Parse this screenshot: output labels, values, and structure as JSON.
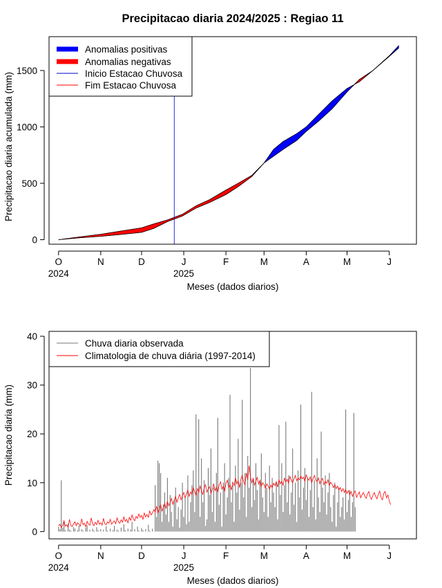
{
  "title": "Precipitacao diaria 2024/2025 : Regiao 11",
  "colors": {
    "positive": "#0000ff",
    "negative": "#ff0000",
    "start_line": "#0000cd",
    "end_line": "#ff0000",
    "observed": "#777777",
    "climatology": "#ff0000"
  },
  "chart_data": [
    {
      "type": "area",
      "ylabel": "Precipitacao diaria acumulada (mm)",
      "xlabel": "Meses (dados diarios)",
      "x_month_ticks": [
        "O",
        "N",
        "D",
        "J",
        "F",
        "M",
        "A",
        "M",
        "J"
      ],
      "x_year_labels": [
        "2024",
        "2025"
      ],
      "x_range": [
        "2024-09-24",
        "2025-06-21"
      ],
      "ylim": [
        -40,
        1800
      ],
      "y_ticks": [
        0,
        500,
        1000,
        1500
      ],
      "legend": {
        "position": "top-left",
        "entries": [
          "Anomalias positivas",
          "Anomalias negativas",
          "Inicio Estacao Chuvosa",
          "Fim Estacao Chuvosa"
        ]
      },
      "rainy_season_start": "2024-12-25",
      "observed_accumulated": {
        "dates": [
          "2024-10-01",
          "2024-10-15",
          "2024-11-01",
          "2024-11-15",
          "2024-12-01",
          "2024-12-10",
          "2024-12-20",
          "2024-12-31",
          "2025-01-10",
          "2025-01-20",
          "2025-02-01",
          "2025-02-10",
          "2025-02-20",
          "2025-03-01",
          "2025-03-08",
          "2025-03-15",
          "2025-03-25",
          "2025-04-01",
          "2025-04-10",
          "2025-04-20",
          "2025-05-01",
          "2025-05-10",
          "2025-05-20",
          "2025-06-01",
          "2025-06-08"
        ],
        "values": [
          0,
          15,
          30,
          45,
          65,
          100,
          160,
          210,
          280,
          330,
          400,
          470,
          560,
          680,
          800,
          870,
          940,
          1000,
          1110,
          1230,
          1340,
          1400,
          1500,
          1630,
          1720
        ]
      },
      "climatology_accumulated": {
        "dates": [
          "2024-10-01",
          "2024-10-15",
          "2024-11-01",
          "2024-11-15",
          "2024-12-01",
          "2024-12-10",
          "2024-12-20",
          "2024-12-31",
          "2025-01-10",
          "2025-01-20",
          "2025-02-01",
          "2025-02-10",
          "2025-02-20",
          "2025-03-01",
          "2025-03-08",
          "2025-03-15",
          "2025-03-25",
          "2025-04-01",
          "2025-04-10",
          "2025-04-20",
          "2025-05-01",
          "2025-05-10",
          "2025-05-20",
          "2025-06-01",
          "2025-06-08"
        ],
        "values": [
          0,
          22,
          48,
          75,
          105,
          140,
          175,
          225,
          300,
          355,
          440,
          500,
          570,
          680,
          740,
          800,
          880,
          960,
          1050,
          1160,
          1310,
          1420,
          1500,
          1625,
          1700
        ]
      }
    },
    {
      "type": "bar",
      "ylabel": "Precipitacao diaria (mm)",
      "xlabel": "Meses (dados diarios)",
      "x_month_ticks": [
        "O",
        "N",
        "D",
        "J",
        "F",
        "M",
        "A",
        "M",
        "J"
      ],
      "x_year_labels": [
        "2024",
        "2025"
      ],
      "x_range": [
        "2024-09-24",
        "2025-06-21"
      ],
      "ylim": [
        -1.5,
        41
      ],
      "y_ticks": [
        0,
        10,
        20,
        30,
        40
      ],
      "legend": {
        "position": "top-left",
        "entries": [
          "Chuva diaria observada",
          "Climatologia de chuva diária (1997-2014)"
        ]
      },
      "observed_daily": {
        "start": "2024-10-01",
        "values": [
          1.0,
          0.5,
          10.5,
          0.8,
          2.2,
          0.3,
          0.0,
          1.6,
          0.4,
          0.2,
          0.0,
          0.9,
          0.6,
          0.0,
          0.3,
          1.2,
          0.0,
          0.5,
          0.2,
          0.0,
          0.8,
          1.3,
          0.0,
          0.4,
          0.0,
          0.6,
          0.2,
          0.0,
          0.9,
          0.3,
          0.0,
          0.5,
          0.0,
          0.4,
          0.0,
          1.1,
          0.2,
          0.0,
          0.6,
          0.0,
          0.3,
          1.2,
          0.0,
          0.4,
          0.2,
          0.0,
          0.8,
          0.0,
          1.5,
          0.3,
          0.0,
          0.6,
          0.0,
          0.4,
          2.0,
          0.0,
          0.5,
          0.0,
          1.0,
          0.2,
          0.0,
          0.7,
          0.3,
          0.0,
          0.5,
          0.0,
          1.4,
          0.2,
          0.0,
          0.6,
          0.0,
          9.5,
          3.0,
          14.5,
          14.0,
          12.0,
          2.0,
          5.5,
          8.0,
          3.5,
          11.0,
          2.0,
          7.5,
          4.0,
          1.0,
          6.5,
          9.0,
          2.5,
          5.0,
          0.8,
          4.5,
          10.0,
          3.0,
          7.0,
          1.5,
          11.5,
          2.0,
          6.0,
          9.5,
          12.5,
          4.0,
          24.0,
          8.0,
          23.0,
          3.0,
          15.0,
          6.0,
          10.5,
          1.2,
          2.5,
          13.0,
          7.5,
          17.0,
          4.0,
          9.0,
          2.0,
          12.0,
          23.3,
          5.5,
          8.0,
          1.0,
          10.0,
          14.0,
          3.5,
          7.0,
          11.0,
          28.0,
          6.0,
          9.5,
          2.0,
          13.5,
          8.0,
          19.0,
          4.5,
          10.0,
          27.0,
          7.0,
          12.0,
          3.0,
          15.5,
          9.0,
          33.5,
          5.0,
          11.0,
          6.5,
          14.0,
          8.5,
          2.5,
          10.5,
          16.0,
          7.0,
          4.0,
          12.0,
          9.0,
          3.0,
          13.5,
          6.0,
          11.0,
          8.0,
          5.0,
          10.0,
          2.5,
          21.8,
          7.5,
          14.0,
          4.0,
          9.5,
          22.5,
          6.0,
          11.5,
          3.5,
          8.0,
          17.0,
          5.5,
          10.0,
          2.0,
          12.5,
          7.0,
          26.0,
          4.5,
          9.0,
          13.0,
          6.5,
          11.0,
          3.0,
          8.5,
          28.6,
          5.0,
          10.5,
          2.5,
          15.0,
          7.0,
          4.0,
          20.5,
          9.0,
          6.0,
          11.5,
          3.5,
          8.0,
          12.0,
          5.0,
          2.0,
          7.5,
          10.0,
          1.0,
          6.0,
          9.0,
          3.0,
          5.0,
          7.0,
          2.5,
          25.0,
          4.0,
          6.5,
          8.5,
          3.0,
          6.0,
          24.3,
          5.0
        ]
      },
      "climatology_daily": {
        "start": "2024-10-01",
        "values": [
          1.2,
          1.5,
          0.8,
          1.3,
          2.2,
          1.1,
          1.4,
          0.9,
          2.5,
          1.3,
          1.0,
          1.6,
          2.0,
          1.2,
          1.8,
          1.5,
          1.1,
          2.6,
          1.4,
          1.7,
          1.0,
          2.1,
          1.5,
          1.3,
          2.8,
          1.6,
          1.2,
          1.9,
          1.4,
          2.3,
          1.5,
          1.8,
          1.3,
          2.7,
          1.6,
          1.4,
          2.0,
          1.7,
          2.5,
          1.5,
          1.9,
          2.2,
          1.6,
          2.8,
          2.0,
          1.7,
          2.4,
          1.9,
          3.0,
          2.1,
          2.5,
          1.8,
          2.9,
          2.3,
          3.4,
          2.6,
          2.2,
          3.1,
          2.7,
          3.6,
          2.9,
          3.3,
          2.5,
          3.8,
          3.0,
          3.5,
          2.9,
          4.2,
          3.4,
          3.8,
          4.5,
          4.0,
          5.2,
          3.8,
          4.6,
          5.5,
          4.2,
          4.9,
          5.8,
          4.7,
          6.2,
          5.3,
          5.9,
          6.8,
          5.6,
          6.4,
          7.2,
          6.0,
          6.9,
          7.6,
          6.5,
          7.3,
          8.0,
          6.9,
          7.7,
          8.5,
          7.2,
          8.1,
          7.6,
          9.0,
          8.2,
          7.4,
          8.8,
          8.0,
          9.4,
          8.3,
          7.6,
          8.9,
          9.6,
          8.1,
          8.7,
          9.2,
          7.8,
          8.6,
          9.8,
          8.4,
          9.1,
          8.0,
          9.5,
          10.2,
          8.7,
          9.3,
          8.2,
          9.9,
          10.5,
          9.0,
          9.6,
          8.5,
          10.1,
          9.4,
          11.0,
          9.8,
          10.4,
          9.0,
          10.8,
          11.5,
          10.2,
          9.6,
          12.0,
          10.6,
          13.5,
          11.2,
          10.0,
          10.9,
          9.5,
          10.3,
          11.1,
          9.7,
          10.5,
          9.2,
          10.0,
          9.6,
          8.9,
          9.8,
          9.3,
          8.7,
          9.5,
          9.0,
          9.9,
          9.4,
          10.2,
          9.1,
          10.6,
          9.8,
          10.3,
          9.5,
          11.0,
          10.1,
          10.7,
          9.9,
          11.3,
          10.5,
          10.0,
          10.8,
          11.5,
          10.4,
          11.0,
          10.6,
          11.4,
          10.8,
          11.1,
          10.3,
          11.6,
          10.9,
          10.5,
          11.2,
          10.0,
          10.8,
          11.5,
          10.6,
          10.2,
          11.0,
          9.8,
          10.5,
          10.9,
          9.6,
          10.3,
          9.9,
          10.6,
          9.4,
          10.1,
          9.7,
          9.0,
          9.6,
          8.8,
          9.3,
          8.5,
          9.0,
          8.2,
          8.8,
          8.0,
          8.6,
          7.8,
          8.4,
          7.5,
          8.2,
          7.2,
          7.9,
          8.3,
          7.0,
          7.6,
          8.1,
          6.9,
          7.5,
          8.0,
          7.3,
          6.8,
          7.7,
          8.2,
          7.1,
          6.6,
          7.4,
          8.0,
          7.2,
          6.7,
          7.6,
          8.3,
          7.0,
          6.5,
          7.8,
          8.2,
          6.9,
          7.5,
          6.3,
          5.5
        ]
      }
    }
  ]
}
